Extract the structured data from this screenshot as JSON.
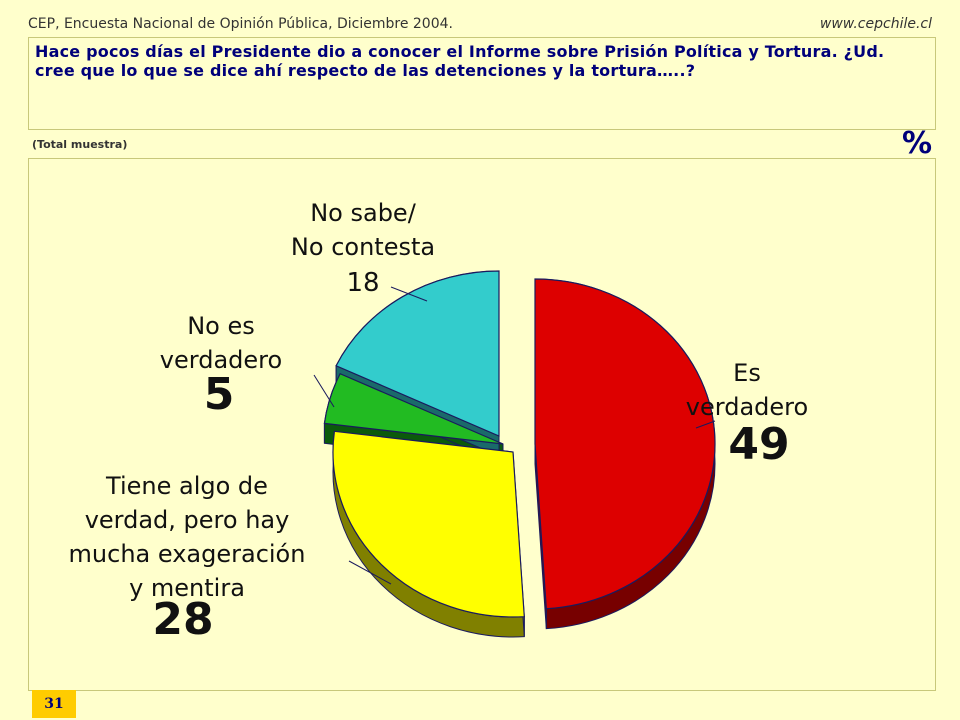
{
  "header": {
    "source": "CEP, Encuesta Nacional de Opinión Pública, Diciembre 2004.",
    "website": "www.cepchile.cl"
  },
  "question": "Hace pocos días el Presidente dio a conocer el Informe sobre Prisión Política y Tortura.  ¿Ud. cree que lo que se dice ahí respecto de las detenciones y la tortura…..?",
  "note": "(Total muestra)",
  "unit": "%",
  "page_number": "31",
  "chart_data": {
    "type": "pie",
    "style": "3d-exploded",
    "slices": [
      {
        "label_lines": [
          "Es",
          "verdadero"
        ],
        "value": 49,
        "color": "#dd0000",
        "side_color": "#770000"
      },
      {
        "label_lines": [
          "Tiene algo de",
          "verdad, pero hay",
          "mucha exageración",
          "y mentira"
        ],
        "value": 28,
        "color": "#ffff00",
        "side_color": "#808000"
      },
      {
        "label_lines": [
          "No es",
          "verdadero"
        ],
        "value": 5,
        "color": "#22bb22",
        "side_color": "#0b5a0b"
      },
      {
        "label_lines": [
          "No sabe/",
          "No contesta"
        ],
        "value": 18,
        "color": "#33cccc",
        "side_color": "#1a6a6a"
      }
    ]
  }
}
